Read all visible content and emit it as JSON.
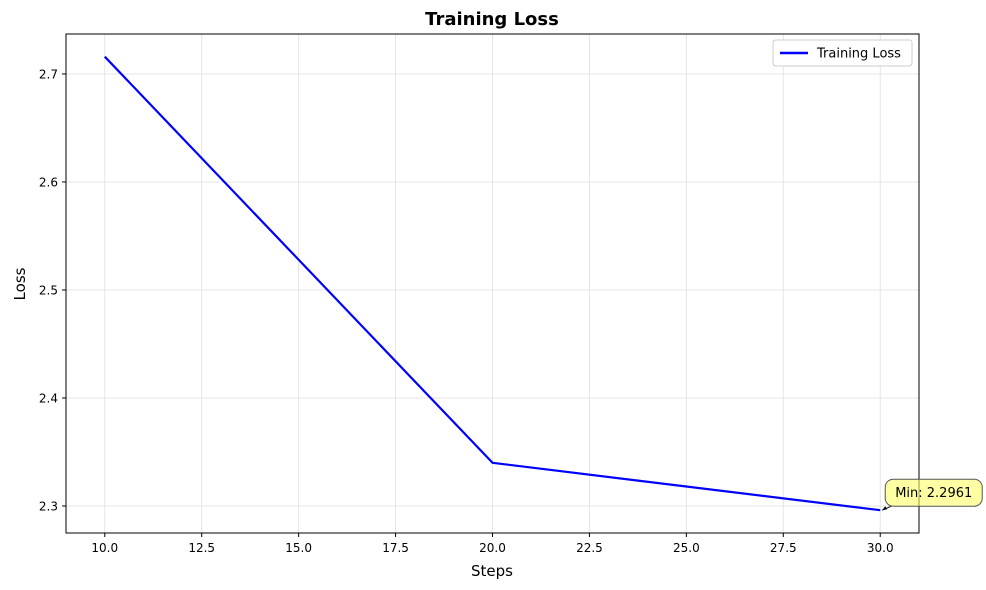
{
  "chart_data": {
    "type": "line",
    "title": "Training Loss",
    "xlabel": "Steps",
    "ylabel": "Loss",
    "xlim": [
      9.0,
      31.0
    ],
    "ylim": [
      2.275,
      2.737
    ],
    "x_ticks": [
      10.0,
      12.5,
      15.0,
      17.5,
      20.0,
      22.5,
      25.0,
      27.5,
      30.0
    ],
    "x_tick_labels": [
      "10.0",
      "12.5",
      "15.0",
      "17.5",
      "20.0",
      "22.5",
      "25.0",
      "27.5",
      "30.0"
    ],
    "y_ticks": [
      2.3,
      2.4,
      2.5,
      2.6,
      2.7
    ],
    "y_tick_labels": [
      "2.3",
      "2.4",
      "2.5",
      "2.6",
      "2.7"
    ],
    "grid": true,
    "legend_position": "top-right",
    "series": [
      {
        "name": "Training Loss",
        "color": "#0000ff",
        "x": [
          10,
          20,
          30
        ],
        "y": [
          2.716,
          2.34,
          2.2961
        ]
      }
    ],
    "annotation": {
      "text": "Min: 2.2961",
      "x": 30,
      "y": 2.2961,
      "box_color": "#ffff66"
    }
  }
}
